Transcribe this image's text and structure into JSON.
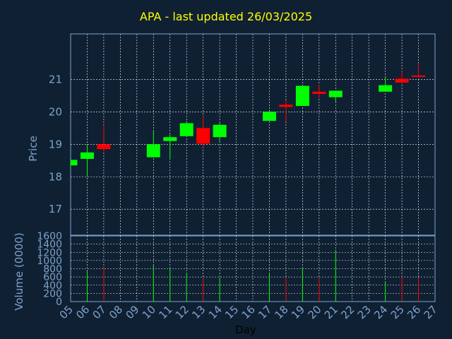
{
  "title": "APA - last updated 26/03/2025",
  "colors": {
    "background": "#0f2033",
    "up": "#00ff00",
    "down": "#ff0000",
    "title": "#ffff00",
    "axis_text": "#7fa3c9",
    "grid": "#ffffff"
  },
  "chart_data": [
    {
      "type": "candlestick",
      "ylabel": "Price",
      "ylim": [
        16.2,
        22.4
      ],
      "yticks": [
        17,
        18,
        19,
        20,
        21
      ],
      "grid": true,
      "candles": [
        {
          "day": "05",
          "open": 18.35,
          "close": 18.52,
          "high": 18.52,
          "low": 18.35
        },
        {
          "day": "06",
          "open": 18.55,
          "close": 18.75,
          "high": 19.0,
          "low": 18.0
        },
        {
          "day": "07",
          "open": 19.0,
          "close": 18.85,
          "high": 19.55,
          "low": 18.8
        },
        {
          "day": "10",
          "open": 18.6,
          "close": 19.0,
          "high": 19.4,
          "low": 18.6
        },
        {
          "day": "11",
          "open": 19.1,
          "close": 19.22,
          "high": 19.3,
          "low": 18.55
        },
        {
          "day": "12",
          "open": 19.25,
          "close": 19.65,
          "high": 19.72,
          "low": 19.25
        },
        {
          "day": "13",
          "open": 19.5,
          "close": 19.02,
          "high": 19.9,
          "low": 18.9
        },
        {
          "day": "14",
          "open": 19.22,
          "close": 19.6,
          "high": 19.65,
          "low": 19.1
        },
        {
          "day": "17",
          "open": 19.72,
          "close": 20.0,
          "high": 20.0,
          "low": 19.72
        },
        {
          "day": "18",
          "open": 20.22,
          "close": 20.15,
          "high": 20.35,
          "low": 19.7
        },
        {
          "day": "19",
          "open": 20.18,
          "close": 20.8,
          "high": 20.8,
          "low": 20.18
        },
        {
          "day": "20",
          "open": 20.62,
          "close": 20.55,
          "high": 20.85,
          "low": 20.42
        },
        {
          "day": "21",
          "open": 20.45,
          "close": 20.65,
          "high": 20.65,
          "low": 20.3
        },
        {
          "day": "24",
          "open": 20.62,
          "close": 20.82,
          "high": 21.1,
          "low": 20.62
        },
        {
          "day": "25",
          "open": 21.02,
          "close": 20.9,
          "high": 21.25,
          "low": 20.85
        },
        {
          "day": "26",
          "open": 21.12,
          "close": 21.08,
          "high": 21.5,
          "low": 21.05
        }
      ]
    },
    {
      "type": "bar",
      "xlabel": "Day",
      "ylabel": "Volume (0000)",
      "ylim": [
        0,
        1600
      ],
      "yticks": [
        0,
        200,
        400,
        600,
        800,
        1000,
        1200,
        1400,
        1600
      ],
      "grid": true,
      "categories": [
        "05",
        "06",
        "07",
        "08",
        "09",
        "10",
        "11",
        "12",
        "13",
        "14",
        "15",
        "16",
        "17",
        "18",
        "19",
        "20",
        "21",
        "22",
        "23",
        "24",
        "25",
        "26",
        "27"
      ],
      "bars": [
        {
          "day": "05",
          "value": 0,
          "direction": "up"
        },
        {
          "day": "06",
          "value": 760,
          "direction": "up"
        },
        {
          "day": "07",
          "value": 830,
          "direction": "down"
        },
        {
          "day": "10",
          "value": 890,
          "direction": "up"
        },
        {
          "day": "11",
          "value": 820,
          "direction": "up"
        },
        {
          "day": "12",
          "value": 680,
          "direction": "up"
        },
        {
          "day": "13",
          "value": 560,
          "direction": "down"
        },
        {
          "day": "14",
          "value": 580,
          "direction": "up"
        },
        {
          "day": "17",
          "value": 680,
          "direction": "up"
        },
        {
          "day": "18",
          "value": 600,
          "direction": "down"
        },
        {
          "day": "19",
          "value": 830,
          "direction": "up"
        },
        {
          "day": "20",
          "value": 560,
          "direction": "down"
        },
        {
          "day": "21",
          "value": 1260,
          "direction": "up"
        },
        {
          "day": "24",
          "value": 470,
          "direction": "up"
        },
        {
          "day": "25",
          "value": 610,
          "direction": "down"
        },
        {
          "day": "26",
          "value": 590,
          "direction": "down"
        }
      ]
    }
  ]
}
